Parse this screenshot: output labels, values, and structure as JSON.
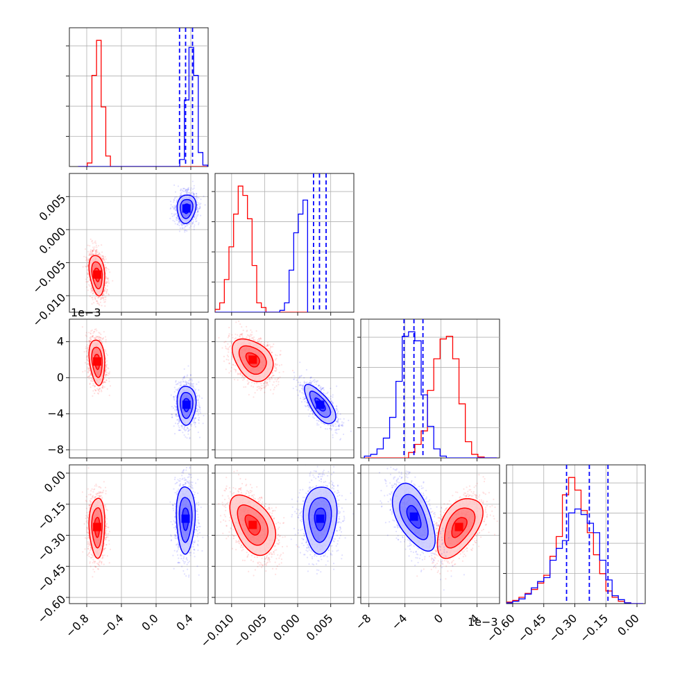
{
  "chart_data": {
    "type": "corner",
    "colors": {
      "red": "#ff0000",
      "blue": "#0000ff",
      "grid": "#b0b0b0",
      "frame": "#222222"
    },
    "parameters": [
      {
        "range": [
          -1.0,
          0.6
        ],
        "ticks": [
          -0.8,
          -0.4,
          0.0,
          0.4
        ],
        "tick_labels": [
          "−0.8",
          "−0.4",
          "0.0",
          "0.4"
        ]
      },
      {
        "range": [
          -0.0125,
          0.0085
        ],
        "ticks": [
          -0.01,
          -0.005,
          0.0,
          0.005
        ],
        "tick_labels": [
          "−0.010",
          "−0.005",
          "0.000",
          "0.005"
        ]
      },
      {
        "range": [
          -8.9,
          6.5
        ],
        "ticks": [
          -8,
          -4,
          0,
          4
        ],
        "tick_labels": [
          "−8",
          "−4",
          "0",
          "4"
        ],
        "offset_text": "1e−3"
      },
      {
        "range": [
          -0.63,
          0.04
        ],
        "ticks": [
          -0.6,
          -0.45,
          -0.3,
          -0.15,
          0.0
        ],
        "tick_labels": [
          "−0.60",
          "−0.45",
          "−0.30",
          "−0.15",
          "0.00"
        ]
      }
    ],
    "red_means": [
      -0.68,
      -0.0068,
      1.8,
      -0.26
    ],
    "blue_means": [
      0.35,
      0.0035,
      -3.0,
      -0.22
    ],
    "quantile_lines_blue": [
      [
        0.27,
        0.34,
        0.42
      ],
      [
        0.0024,
        0.0033,
        0.0043
      ],
      [
        -4.1,
        -3.0,
        -2.0
      ],
      [
        -0.34,
        -0.23,
        -0.14
      ]
    ],
    "histograms": [
      {
        "param": 0,
        "bin_start": -0.9,
        "bin_width": 0.0533,
        "red": [
          0,
          0,
          0.5,
          13.0,
          18.0,
          8.5,
          1.5,
          0,
          0,
          0,
          0,
          0,
          0,
          0,
          0,
          0,
          0,
          0,
          0,
          0,
          0,
          0,
          0,
          0,
          0,
          0,
          0,
          0,
          0,
          0
        ],
        "blue": [
          0,
          0,
          0,
          0,
          0,
          0,
          0,
          0,
          0,
          0,
          0,
          0,
          0,
          0,
          0,
          0,
          0,
          0,
          0,
          0,
          0,
          0,
          1,
          9.5,
          17.0,
          13.0,
          2.0,
          0.2,
          0,
          0
        ]
      },
      {
        "param": 1,
        "bin_start": -0.0125,
        "bin_width": 0.0007,
        "red": [
          0.3,
          1.0,
          3.5,
          7.0,
          10.5,
          13.5,
          12.5,
          10.0,
          5.0,
          1.0,
          0.5,
          0,
          0,
          0,
          0,
          0,
          0,
          0,
          0,
          0
        ],
        "blue": [
          0,
          0,
          0,
          0,
          0,
          0,
          0,
          0,
          0,
          0,
          0,
          0,
          0,
          0,
          0.2,
          1.0,
          4.5,
          8.5,
          10.5,
          12.0
        ]
      },
      {
        "param": 2,
        "bin_start": -8.5,
        "bin_width": 0.7,
        "red": [
          0,
          0,
          0,
          0,
          0,
          0,
          0,
          0.6,
          1.5,
          3.0,
          7.5,
          11.0,
          13.2,
          13.5,
          11.0,
          6.0,
          1.8,
          0.4,
          0.1,
          0,
          0
        ],
        "blue": [
          0.2,
          0.4,
          1.0,
          2.2,
          4.5,
          8.5,
          13.5,
          14.0,
          13.0,
          7.0,
          3.5,
          1.0,
          0.2,
          0,
          0,
          0,
          0,
          0,
          0,
          0,
          0
        ]
      },
      {
        "param": 3,
        "bin_start": -0.63,
        "bin_width": 0.03,
        "red": [
          0.2,
          0.4,
          0.8,
          1.3,
          1.8,
          2.6,
          3.6,
          6.0,
          8.5,
          13.8,
          16.0,
          14.4,
          11.8,
          9.0,
          6.2,
          3.8,
          1.6,
          0.8,
          0.3,
          0.1,
          0,
          0
        ],
        "blue": [
          0.1,
          0.3,
          0.6,
          1.2,
          2.0,
          2.8,
          3.3,
          5.5,
          7.0,
          8.0,
          11.5,
          12.0,
          11.3,
          10.2,
          9.0,
          5.5,
          3.0,
          1.0,
          0.5,
          0.1,
          0,
          0
        ]
      }
    ],
    "scatter_panels": [
      {
        "row": 1,
        "col": 0,
        "red": {
          "cx": -0.68,
          "cy": -0.0068,
          "sx": 0.05,
          "sy": 0.0017,
          "rho": -0.25
        },
        "blue": {
          "cx": 0.35,
          "cy": 0.0032,
          "sx": 0.06,
          "sy": 0.0012,
          "rho": 0.1
        }
      },
      {
        "row": 2,
        "col": 0,
        "red": {
          "cx": -0.68,
          "cy": 1.8,
          "sx": 0.05,
          "sy": 1.4,
          "rho": -0.2
        },
        "blue": {
          "cx": 0.35,
          "cy": -3.0,
          "sx": 0.06,
          "sy": 1.2,
          "rho": 0.0
        }
      },
      {
        "row": 2,
        "col": 1,
        "red": {
          "cx": -0.0068,
          "cy": 2.0,
          "sx": 0.0017,
          "sy": 1.3,
          "rho": -0.35
        },
        "blue": {
          "cx": 0.0034,
          "cy": -3.0,
          "sx": 0.0013,
          "sy": 1.2,
          "rho": -0.7
        }
      },
      {
        "row": 3,
        "col": 0,
        "red": {
          "cx": -0.68,
          "cy": -0.26,
          "sx": 0.05,
          "sy": 0.08,
          "rho": 0.0
        },
        "blue": {
          "cx": 0.34,
          "cy": -0.22,
          "sx": 0.06,
          "sy": 0.09,
          "rho": 0.0
        }
      },
      {
        "row": 3,
        "col": 1,
        "red": {
          "cx": -0.0068,
          "cy": -0.25,
          "sx": 0.0019,
          "sy": 0.08,
          "rho": -0.45
        },
        "blue": {
          "cx": 0.0034,
          "cy": -0.22,
          "sx": 0.0014,
          "sy": 0.09,
          "rho": 0.05
        }
      },
      {
        "row": 3,
        "col": 2,
        "red": {
          "cx": 2.0,
          "cy": -0.26,
          "sx": 1.4,
          "sy": 0.08,
          "rho": 0.5
        },
        "blue": {
          "cx": -3.0,
          "cy": -0.21,
          "sx": 1.3,
          "sy": 0.09,
          "rho": -0.55
        }
      }
    ],
    "contour_levels_sigma": [
      0.6,
      1.2,
      1.8
    ]
  }
}
